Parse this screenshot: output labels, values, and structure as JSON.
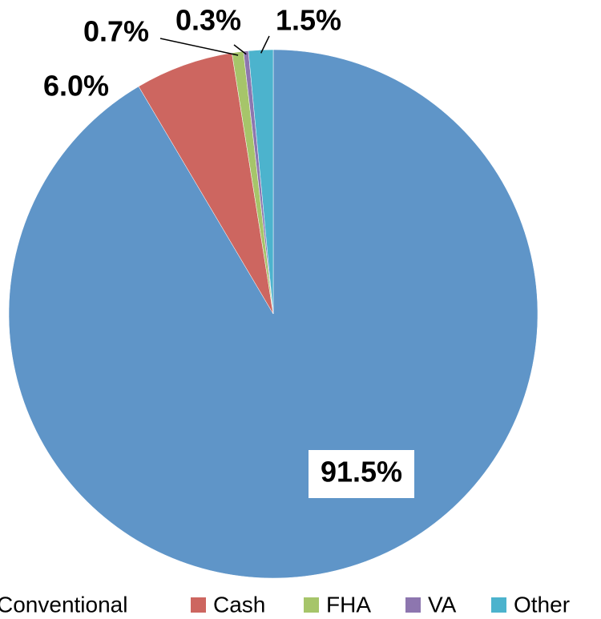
{
  "chart_data": {
    "type": "pie",
    "categories": [
      "Conventional",
      "Cash",
      "FHA",
      "VA",
      "Other"
    ],
    "values": [
      91.5,
      6.0,
      0.7,
      0.3,
      1.5
    ],
    "value_labels": [
      "91.5%",
      "6.0%",
      "0.7%",
      "0.3%",
      "1.5%"
    ],
    "colors": [
      "#5f95c8",
      "#cd6660",
      "#a6c56a",
      "#8d76af",
      "#4cb3cd"
    ],
    "legend": "bottom"
  }
}
